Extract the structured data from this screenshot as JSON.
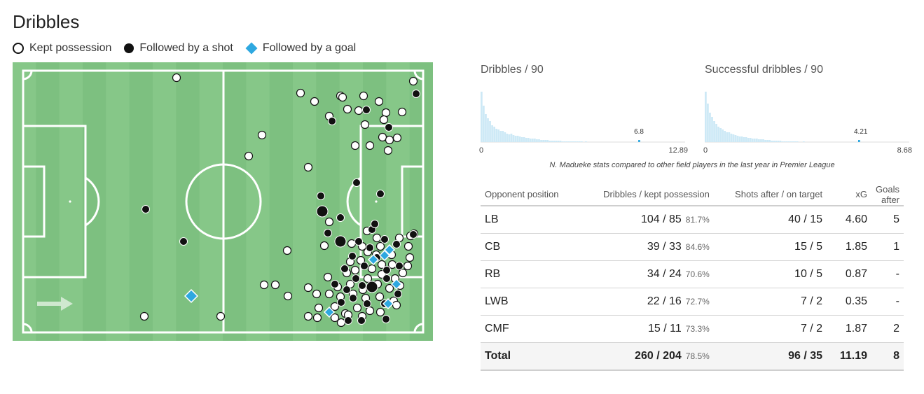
{
  "title": "Dribbles",
  "legend": {
    "kept": "Kept possession",
    "shot": "Followed by a shot",
    "goal": "Followed by a goal"
  },
  "colors": {
    "pitch_light": "#86c788",
    "pitch_dark": "#7dc080",
    "goal": "#2ea8e0",
    "bar": "#cde9f6",
    "bar_mark": "#2ea8e0"
  },
  "icons": {
    "direction": "arrow-right-icon"
  },
  "dribble_events": {
    "kept": [
      [
        252,
        111
      ],
      [
        429,
        133
      ],
      [
        449,
        145
      ],
      [
        486,
        137
      ],
      [
        496,
        156
      ],
      [
        519,
        137
      ],
      [
        541,
        145
      ],
      [
        574,
        160
      ],
      [
        590,
        116
      ],
      [
        551,
        161
      ],
      [
        548,
        171
      ],
      [
        374,
        193
      ],
      [
        507,
        208
      ],
      [
        528,
        208
      ],
      [
        546,
        196
      ],
      [
        556,
        200
      ],
      [
        567,
        197
      ],
      [
        554,
        215
      ],
      [
        355,
        223
      ],
      [
        440,
        239
      ],
      [
        410,
        358
      ],
      [
        463,
        351
      ],
      [
        377,
        407
      ],
      [
        393,
        407
      ],
      [
        440,
        411
      ],
      [
        411,
        423
      ],
      [
        489,
        139
      ],
      [
        512,
        158
      ],
      [
        470,
        166
      ],
      [
        521,
        178
      ],
      [
        470,
        317
      ],
      [
        524,
        330
      ],
      [
        538,
        340
      ],
      [
        570,
        340
      ],
      [
        586,
        337
      ],
      [
        517,
        352
      ],
      [
        525,
        360
      ],
      [
        543,
        352
      ],
      [
        559,
        364
      ],
      [
        585,
        368
      ],
      [
        582,
        380
      ],
      [
        500,
        374
      ],
      [
        515,
        372
      ],
      [
        531,
        384
      ],
      [
        545,
        378
      ],
      [
        560,
        378
      ],
      [
        495,
        390
      ],
      [
        507,
        386
      ],
      [
        525,
        398
      ],
      [
        545,
        392
      ],
      [
        564,
        398
      ],
      [
        575,
        390
      ],
      [
        468,
        396
      ],
      [
        482,
        410
      ],
      [
        500,
        406
      ],
      [
        518,
        414
      ],
      [
        539,
        406
      ],
      [
        556,
        412
      ],
      [
        571,
        408
      ],
      [
        452,
        420
      ],
      [
        470,
        420
      ],
      [
        486,
        424
      ],
      [
        504,
        420
      ],
      [
        522,
        426
      ],
      [
        542,
        424
      ],
      [
        562,
        430
      ],
      [
        455,
        440
      ],
      [
        478,
        438
      ],
      [
        493,
        448
      ],
      [
        510,
        440
      ],
      [
        528,
        444
      ],
      [
        543,
        446
      ],
      [
        566,
        436
      ],
      [
        440,
        452
      ],
      [
        453,
        454
      ],
      [
        478,
        454
      ],
      [
        497,
        450
      ],
      [
        517,
        452
      ],
      [
        206,
        452
      ],
      [
        315,
        452
      ],
      [
        487,
        461
      ],
      [
        591,
        334
      ],
      [
        502,
        348
      ],
      [
        537,
        364
      ],
      [
        583,
        352
      ]
    ],
    "shot": [
      [
        474,
        173
      ],
      [
        523,
        157
      ],
      [
        555,
        182
      ],
      [
        594,
        134
      ],
      [
        509,
        261
      ],
      [
        543,
        277
      ],
      [
        458,
        280
      ],
      [
        486,
        311
      ],
      [
        468,
        333
      ],
      [
        531,
        328
      ],
      [
        486,
        345
      ],
      [
        208,
        299
      ],
      [
        262,
        345
      ],
      [
        512,
        345
      ],
      [
        528,
        354
      ],
      [
        549,
        342
      ],
      [
        566,
        349
      ],
      [
        590,
        335
      ],
      [
        503,
        366
      ],
      [
        520,
        380
      ],
      [
        538,
        368
      ],
      [
        552,
        386
      ],
      [
        570,
        380
      ],
      [
        492,
        384
      ],
      [
        508,
        398
      ],
      [
        531,
        410
      ],
      [
        552,
        398
      ],
      [
        568,
        420
      ],
      [
        478,
        406
      ],
      [
        495,
        414
      ],
      [
        517,
        408
      ],
      [
        487,
        432
      ],
      [
        504,
        426
      ],
      [
        524,
        434
      ],
      [
        549,
        434
      ],
      [
        516,
        458
      ],
      [
        497,
        458
      ],
      [
        551,
        456
      ],
      [
        460,
        302
      ],
      [
        535,
        320
      ]
    ],
    "goal": [
      [
        273,
        423
      ],
      [
        470,
        446
      ],
      [
        533,
        371
      ],
      [
        549,
        365
      ],
      [
        556,
        357
      ],
      [
        566,
        406
      ],
      [
        554,
        434
      ]
    ]
  },
  "histograms": [
    {
      "title": "Dribbles / 90",
      "min": "0",
      "max": "12.89",
      "player_value": "6.8",
      "player_bin": 25
    },
    {
      "title": "Successful dribbles / 90",
      "min": "0",
      "max": "8.68",
      "player_value": "4.21",
      "player_bin": 24
    }
  ],
  "note": "N. Madueke stats compared to other field players in the last year in Premier League",
  "table": {
    "headers": [
      "Opponent position",
      "Dribbles / kept possession",
      "Shots after / on target",
      "xG",
      "Goals after"
    ],
    "rows": [
      {
        "pos": "LB",
        "dribbles": "104 / 85",
        "pct": "81.7%",
        "shots": "40 / 15",
        "xg": "4.60",
        "goals": "5"
      },
      {
        "pos": "CB",
        "dribbles": "39 / 33",
        "pct": "84.6%",
        "shots": "15 / 5",
        "xg": "1.85",
        "goals": "1"
      },
      {
        "pos": "RB",
        "dribbles": "34 / 24",
        "pct": "70.6%",
        "shots": "10 / 5",
        "xg": "0.87",
        "goals": "-"
      },
      {
        "pos": "LWB",
        "dribbles": "22 / 16",
        "pct": "72.7%",
        "shots": "7 / 2",
        "xg": "0.35",
        "goals": "-"
      },
      {
        "pos": "CMF",
        "dribbles": "15 / 11",
        "pct": "73.3%",
        "shots": "7 / 2",
        "xg": "1.87",
        "goals": "2"
      }
    ],
    "total": {
      "pos": "Total",
      "dribbles": "260 / 204",
      "pct": "78.5%",
      "shots": "96 / 35",
      "xg": "11.19",
      "goals": "8"
    }
  }
}
